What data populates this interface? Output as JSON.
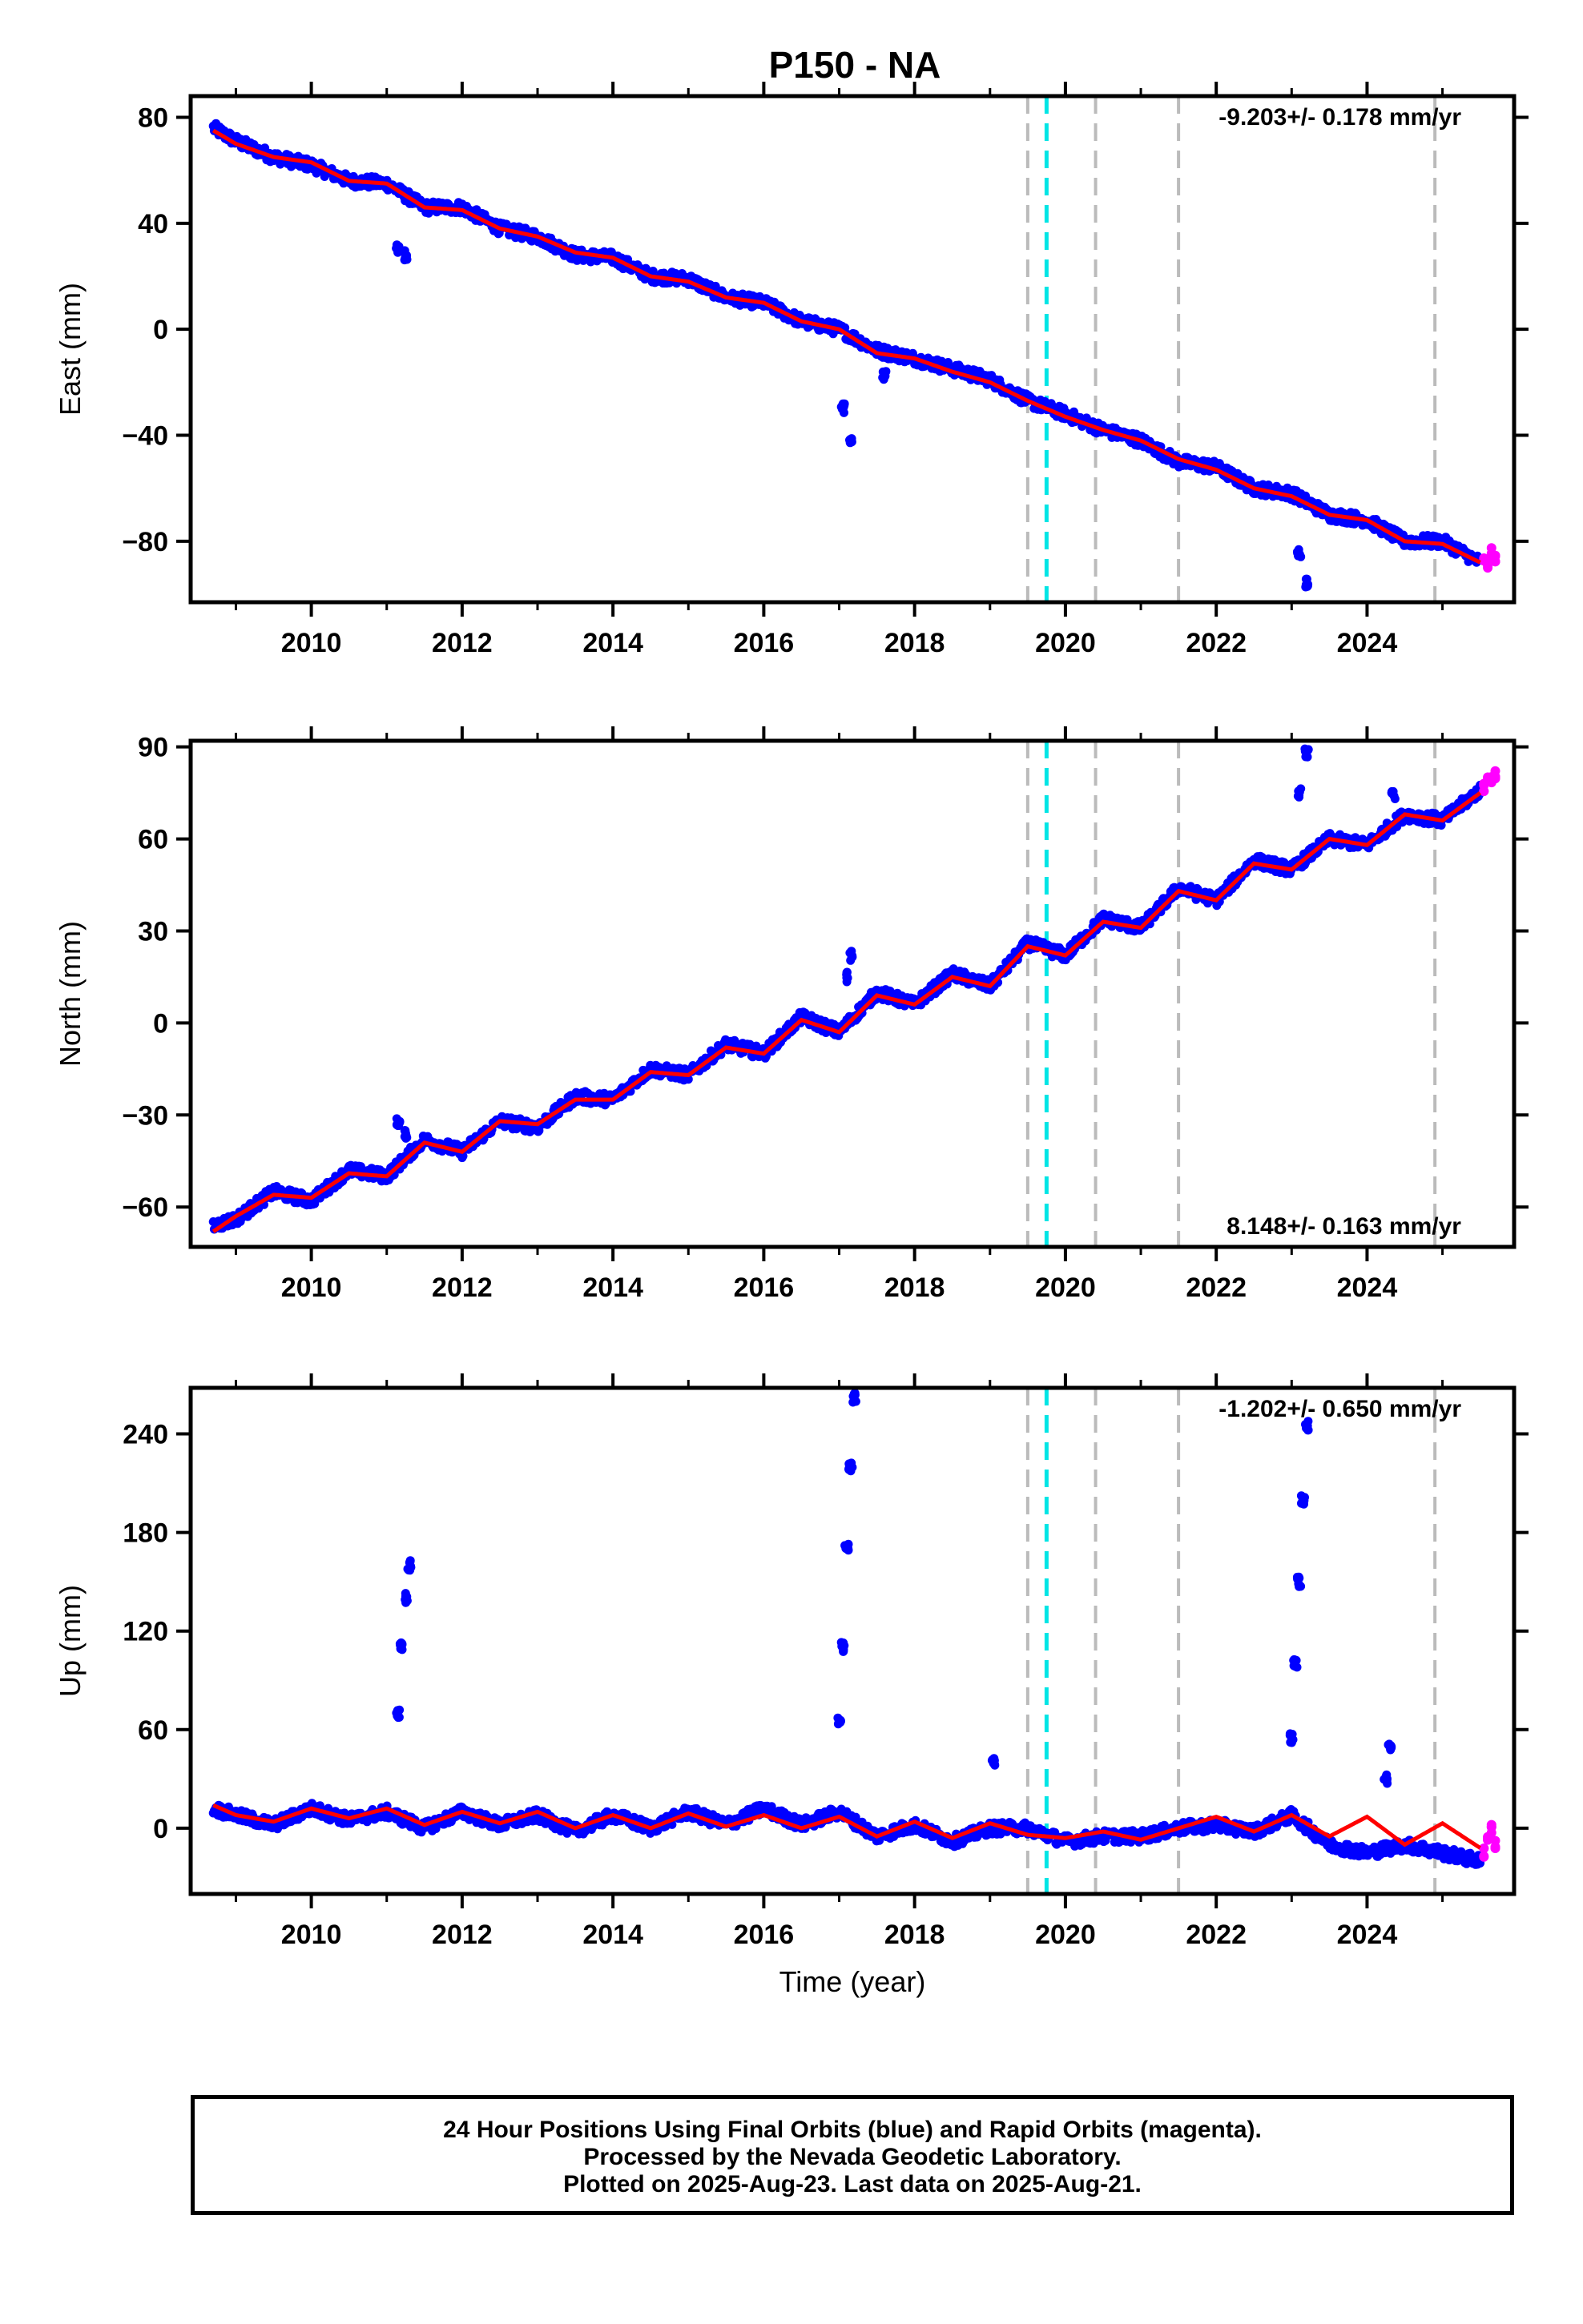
{
  "title": "P150 - NA",
  "footer": {
    "line1": "24 Hour Positions Using Final Orbits (blue) and Rapid Orbits (magenta).",
    "line2": "Processed by the Nevada Geodetic Laboratory.",
    "line3": "Plotted on 2025-Aug-23. Last data on 2025-Aug-21."
  },
  "chart_data": [
    {
      "type": "scatter",
      "panel": "east",
      "ylabel": "East (mm)",
      "xlabel": "",
      "xlim": [
        2008.4,
        2025.95
      ],
      "ylim": [
        -103,
        88
      ],
      "x_ticks": [
        "2010",
        "2012",
        "2014",
        "2016",
        "2018",
        "2020",
        "2022",
        "2024"
      ],
      "y_ticks": [
        "80",
        "40",
        "0",
        "−40",
        "−80"
      ],
      "y_tick_values": [
        80,
        40,
        0,
        -40,
        -80
      ],
      "rate": "-9.203+/- 0.178 mm/yr",
      "rate_position": "top-right",
      "series": [
        {
          "name": "Final Orbits",
          "color": "#0000ff",
          "x": [
            2008.7,
            2009.0,
            2009.5,
            2010.0,
            2010.5,
            2011.0,
            2011.5,
            2012.0,
            2012.5,
            2013.0,
            2013.5,
            2014.0,
            2014.5,
            2015.0,
            2015.5,
            2016.0,
            2016.5,
            2017.0,
            2017.5,
            2018.0,
            2018.5,
            2019.0,
            2019.5,
            2020.0,
            2020.5,
            2021.0,
            2021.5,
            2022.0,
            2022.5,
            2023.0,
            2023.5,
            2024.0,
            2024.5,
            2025.0,
            2025.5
          ],
          "y": [
            76,
            71,
            65,
            62,
            56,
            55,
            46,
            46,
            38,
            35,
            28,
            27,
            20,
            19,
            12,
            10,
            3,
            0,
            -8,
            -11,
            -15,
            -19,
            -27,
            -32,
            -38,
            -42,
            -50,
            -52,
            -60,
            -62,
            -70,
            -72,
            -80,
            -80,
            -88
          ]
        },
        {
          "name": "Rapid Orbits",
          "color": "#ff00ff",
          "x": [
            2025.55,
            2025.6,
            2025.65,
            2025.7
          ],
          "y": [
            -86,
            -89,
            -84,
            -87
          ]
        }
      ],
      "model": {
        "color": "#ff0000",
        "x": [
          2008.7,
          2009.0,
          2009.5,
          2010.0,
          2010.5,
          2011.0,
          2011.5,
          2012.0,
          2012.5,
          2013.0,
          2013.5,
          2014.0,
          2014.5,
          2015.0,
          2015.5,
          2016.0,
          2016.5,
          2017.0,
          2017.5,
          2018.0,
          2018.5,
          2019.0,
          2019.5,
          2020.0,
          2020.5,
          2021.0,
          2021.5,
          2022.0,
          2022.5,
          2023.0,
          2023.5,
          2024.0,
          2024.5,
          2025.0,
          2025.5
        ],
        "y": [
          75,
          70,
          65,
          63,
          56,
          55,
          46,
          45,
          38,
          35,
          29,
          27,
          20,
          18,
          12,
          10,
          3,
          0,
          -9,
          -11,
          -16,
          -20,
          -27,
          -33,
          -38,
          -42,
          -49,
          -53,
          -60,
          -63,
          -70,
          -72,
          -80,
          -81,
          -88
        ]
      },
      "offset_transients": [
        {
          "x": [
            2011.15,
            2011.25
          ],
          "y": [
            30,
            28
          ]
        },
        {
          "x": [
            2017.05,
            2017.15
          ],
          "y": [
            -30,
            -42
          ]
        },
        {
          "x": [
            2017.6
          ],
          "y": [
            -17
          ]
        },
        {
          "x": [
            2023.1,
            2023.2
          ],
          "y": [
            -85,
            -96
          ]
        }
      ],
      "vlines": [
        {
          "x": 2019.5,
          "color": "#bbbbbb",
          "style": "dashed"
        },
        {
          "x": 2019.75,
          "color": "#00e5e5",
          "style": "dashed"
        },
        {
          "x": 2020.4,
          "color": "#bbbbbb",
          "style": "dashed"
        },
        {
          "x": 2021.5,
          "color": "#bbbbbb",
          "style": "dashed"
        },
        {
          "x": 2024.9,
          "color": "#bbbbbb",
          "style": "dashed"
        }
      ]
    },
    {
      "type": "scatter",
      "panel": "north",
      "ylabel": "North (mm)",
      "xlabel": "",
      "xlim": [
        2008.4,
        2025.95
      ],
      "ylim": [
        -73,
        92
      ],
      "x_ticks": [
        "2010",
        "2012",
        "2014",
        "2016",
        "2018",
        "2020",
        "2022",
        "2024"
      ],
      "y_ticks": [
        "90",
        "60",
        "30",
        "0",
        "−30",
        "−60"
      ],
      "y_tick_values": [
        90,
        60,
        30,
        0,
        -30,
        -60
      ],
      "rate": "8.148+/- 0.163 mm/yr",
      "rate_position": "bottom-right",
      "series": [
        {
          "name": "Final Orbits",
          "color": "#0000ff",
          "x": [
            2008.7,
            2009.0,
            2009.5,
            2010.0,
            2010.5,
            2011.0,
            2011.5,
            2012.0,
            2012.5,
            2013.0,
            2013.5,
            2014.0,
            2014.5,
            2015.0,
            2015.5,
            2016.0,
            2016.5,
            2017.0,
            2017.5,
            2018.0,
            2018.5,
            2019.0,
            2019.5,
            2020.0,
            2020.5,
            2021.0,
            2021.5,
            2022.0,
            2022.5,
            2023.0,
            2023.5,
            2024.0,
            2024.5,
            2025.0,
            2025.5
          ],
          "y": [
            -66,
            -64,
            -55,
            -58,
            -48,
            -50,
            -38,
            -42,
            -32,
            -34,
            -24,
            -25,
            -15,
            -17,
            -7,
            -10,
            2,
            -3,
            10,
            6,
            16,
            12,
            26,
            22,
            34,
            31,
            44,
            40,
            53,
            50,
            60,
            58,
            68,
            66,
            76
          ]
        },
        {
          "name": "Rapid Orbits",
          "color": "#ff00ff",
          "x": [
            2025.55,
            2025.6,
            2025.65,
            2025.7
          ],
          "y": [
            77,
            80,
            79,
            81
          ]
        }
      ],
      "model": {
        "color": "#ff0000",
        "x": [
          2008.7,
          2009.0,
          2009.5,
          2010.0,
          2010.5,
          2011.0,
          2011.5,
          2012.0,
          2012.5,
          2013.0,
          2013.5,
          2014.0,
          2014.5,
          2015.0,
          2015.5,
          2016.0,
          2016.5,
          2017.0,
          2017.5,
          2018.0,
          2018.5,
          2019.0,
          2019.5,
          2020.0,
          2020.5,
          2021.0,
          2021.5,
          2022.0,
          2022.5,
          2023.0,
          2023.5,
          2024.0,
          2024.5,
          2025.0,
          2025.5
        ],
        "y": [
          -68,
          -63,
          -56,
          -57,
          -49,
          -50,
          -39,
          -42,
          -32,
          -33,
          -25,
          -25,
          -16,
          -17,
          -8,
          -10,
          1,
          -3,
          9,
          6,
          15,
          12,
          25,
          22,
          33,
          31,
          43,
          40,
          52,
          50,
          60,
          58,
          68,
          66,
          75
        ]
      },
      "offset_transients": [
        {
          "x": [
            2011.15,
            2011.25
          ],
          "y": [
            -32,
            -36
          ]
        },
        {
          "x": [
            2017.1,
            2017.15
          ],
          "y": [
            15,
            22
          ]
        },
        {
          "x": [
            2023.1,
            2023.2
          ],
          "y": [
            75,
            88
          ]
        },
        {
          "x": [
            2024.35
          ],
          "y": [
            74
          ]
        }
      ],
      "vlines": [
        {
          "x": 2019.5,
          "color": "#bbbbbb",
          "style": "dashed"
        },
        {
          "x": 2019.75,
          "color": "#00e5e5",
          "style": "dashed"
        },
        {
          "x": 2020.4,
          "color": "#bbbbbb",
          "style": "dashed"
        },
        {
          "x": 2021.5,
          "color": "#bbbbbb",
          "style": "dashed"
        },
        {
          "x": 2024.9,
          "color": "#bbbbbb",
          "style": "dashed"
        }
      ]
    },
    {
      "type": "scatter",
      "panel": "up",
      "ylabel": "Up (mm)",
      "xlabel": "Time (year)",
      "xlim": [
        2008.4,
        2025.95
      ],
      "ylim": [
        -40,
        268
      ],
      "x_ticks": [
        "2010",
        "2012",
        "2014",
        "2016",
        "2018",
        "2020",
        "2022",
        "2024"
      ],
      "y_ticks": [
        "240",
        "180",
        "120",
        "60",
        "0"
      ],
      "y_tick_values": [
        240,
        180,
        120,
        60,
        0
      ],
      "rate": "-1.202+/- 0.650 mm/yr",
      "rate_position": "top-right",
      "series": [
        {
          "name": "Final Orbits",
          "color": "#0000ff",
          "x": [
            2008.7,
            2009.0,
            2009.5,
            2010.0,
            2010.5,
            2011.0,
            2011.5,
            2012.0,
            2012.5,
            2013.0,
            2013.5,
            2014.0,
            2014.5,
            2015.0,
            2015.5,
            2016.0,
            2016.5,
            2017.0,
            2017.5,
            2018.0,
            2018.5,
            2019.0,
            2019.5,
            2020.0,
            2020.5,
            2021.0,
            2021.5,
            2022.0,
            2022.5,
            2023.0,
            2023.5,
            2024.0,
            2024.5,
            2025.0,
            2025.5
          ],
          "y": [
            12,
            8,
            2,
            12,
            5,
            10,
            0,
            10,
            2,
            8,
            -2,
            8,
            0,
            10,
            2,
            12,
            2,
            10,
            -5,
            2,
            -8,
            0,
            0,
            -8,
            -5,
            -5,
            0,
            2,
            -2,
            8,
            -10,
            -15,
            -10,
            -15,
            -20
          ]
        },
        {
          "name": "Rapid Orbits",
          "color": "#ff00ff",
          "x": [
            2025.55,
            2025.6,
            2025.65,
            2025.7
          ],
          "y": [
            -15,
            -5,
            0,
            -10
          ]
        }
      ],
      "model": {
        "color": "#ff0000",
        "x": [
          2008.7,
          2009.0,
          2009.5,
          2010.0,
          2010.5,
          2011.0,
          2011.5,
          2012.0,
          2012.5,
          2013.0,
          2013.5,
          2014.0,
          2014.5,
          2015.0,
          2015.5,
          2016.0,
          2016.5,
          2017.0,
          2017.5,
          2018.0,
          2018.5,
          2019.0,
          2019.5,
          2020.0,
          2020.5,
          2021.0,
          2021.5,
          2022.0,
          2022.5,
          2023.0,
          2023.5,
          2024.0,
          2024.5,
          2025.0,
          2025.5
        ],
        "y": [
          14,
          8,
          4,
          12,
          6,
          12,
          2,
          10,
          3,
          10,
          0,
          8,
          0,
          9,
          1,
          8,
          0,
          7,
          -5,
          4,
          -6,
          3,
          -4,
          -6,
          -2,
          -7,
          0,
          7,
          -2,
          8,
          -5,
          7,
          -10,
          3,
          -12
        ]
      },
      "offset_transients": [
        {
          "x": [
            2011.15,
            2011.2,
            2011.25,
            2011.3
          ],
          "y": [
            70,
            110,
            140,
            160
          ]
        },
        {
          "x": [
            2017.0,
            2017.05,
            2017.1,
            2017.15,
            2017.2
          ],
          "y": [
            65,
            110,
            170,
            220,
            262
          ]
        },
        {
          "x": [
            2019.05
          ],
          "y": [
            40
          ]
        },
        {
          "x": [
            2023.0,
            2023.05,
            2023.1,
            2023.15,
            2023.2
          ],
          "y": [
            55,
            100,
            150,
            200,
            245
          ]
        },
        {
          "x": [
            2024.25,
            2024.3
          ],
          "y": [
            30,
            50
          ]
        }
      ],
      "vlines": [
        {
          "x": 2019.5,
          "color": "#bbbbbb",
          "style": "dashed"
        },
        {
          "x": 2019.75,
          "color": "#00e5e5",
          "style": "dashed"
        },
        {
          "x": 2020.4,
          "color": "#bbbbbb",
          "style": "dashed"
        },
        {
          "x": 2021.5,
          "color": "#bbbbbb",
          "style": "dashed"
        },
        {
          "x": 2024.9,
          "color": "#bbbbbb",
          "style": "dashed"
        }
      ]
    }
  ]
}
